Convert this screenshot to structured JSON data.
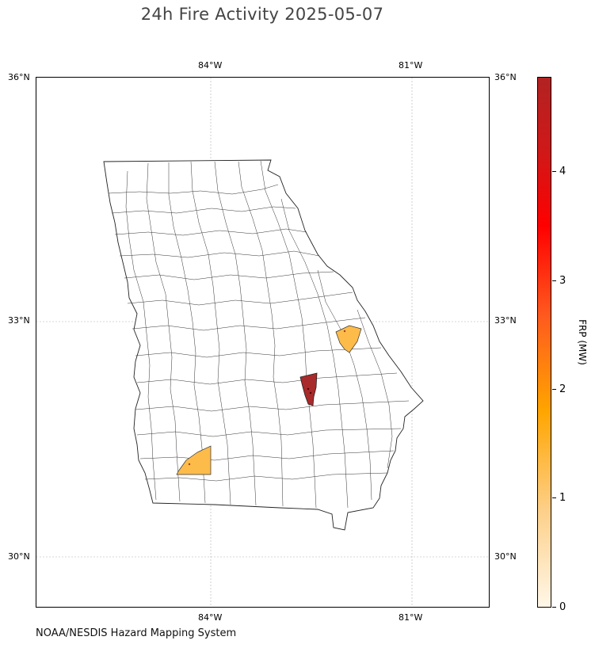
{
  "title": "24h Fire Activity 2025-05-07",
  "credit": "NOAA/NESDIS Hazard Mapping System",
  "map": {
    "region": "Georgia counties",
    "projection": "PlateCarree",
    "lon_range": [
      -86.6,
      -79.8
    ],
    "lat_range": [
      29.4,
      36.0
    ],
    "gridlines": true,
    "ticks_top": [
      "84°W",
      "81°W"
    ],
    "ticks_bottom": [
      "84°W",
      "81°W"
    ],
    "ticks_left": [
      "36°N",
      "33°N",
      "30°N"
    ],
    "ticks_right": [
      "36°N",
      "33°N",
      "30°N"
    ],
    "highlighted_counties": [
      {
        "location": "east-central Georgia",
        "frp_mw": 1.0,
        "color": "#fdbb4a"
      },
      {
        "location": "south-central Georgia",
        "frp_mw": 4.8,
        "color": "#a82a2a"
      },
      {
        "location": "southwest Georgia",
        "frp_mw": 1.0,
        "color": "#fdbb4a"
      }
    ]
  },
  "colorbar": {
    "label": "FRP (MW)",
    "ticks": [
      "0",
      "1",
      "2",
      "3",
      "4"
    ],
    "range": [
      0,
      4.85
    ],
    "colors": [
      "#fff7e8",
      "#fdd08a",
      "#ffa500",
      "#ff5a1e",
      "#ff0000",
      "#b22222"
    ]
  }
}
